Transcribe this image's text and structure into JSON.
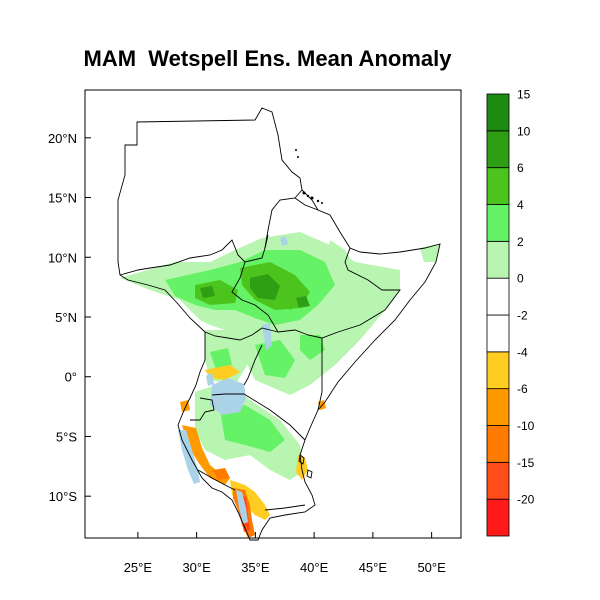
{
  "title": "MAM  Wetspell Ens. Mean Anomaly",
  "map": {
    "lon_range": [
      20.5,
      52.5
    ],
    "lat_range": [
      -13.5,
      24
    ],
    "lon_ticks": [
      "25°E",
      "30°E",
      "35°E",
      "40°E",
      "45°E",
      "50°E"
    ],
    "lat_ticks": [
      "20°N",
      "15°N",
      "10°N",
      "5°N",
      "0°",
      "5°S",
      "10°S"
    ],
    "lake_color": "#aad3e8",
    "border_color": "#000000"
  },
  "colorbar": {
    "colors": [
      "#ff1a1a",
      "#ff4d1a",
      "#ff7a00",
      "#ff9900",
      "#ffcc22",
      "#ffffff",
      "#ffffff",
      "#b8f5b0",
      "#66f266",
      "#4cc41e",
      "#2e9e14",
      "#1e8b12"
    ],
    "labels": [
      "-20",
      "-15",
      "-10",
      "-6",
      "-4",
      "-2",
      "0",
      "2",
      "4",
      "6",
      "10",
      "15"
    ]
  }
}
